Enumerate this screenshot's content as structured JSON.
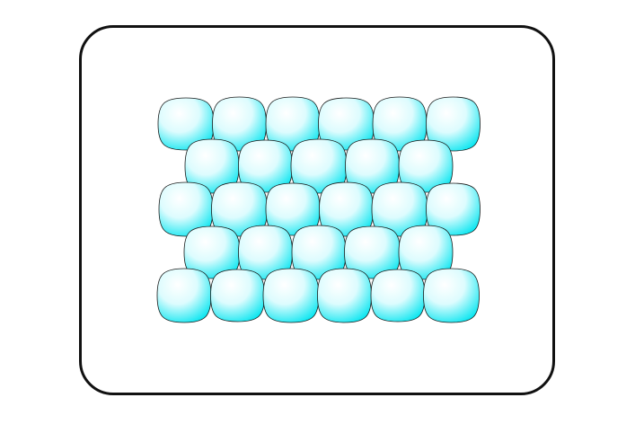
{
  "diagram": {
    "rows": [
      6,
      5,
      6,
      5,
      6
    ],
    "colors": {
      "fill_light": "#ffffff",
      "fill_dark": "#00e5f0",
      "outline": "#1a1a1a",
      "frame_border": "#111111"
    }
  }
}
